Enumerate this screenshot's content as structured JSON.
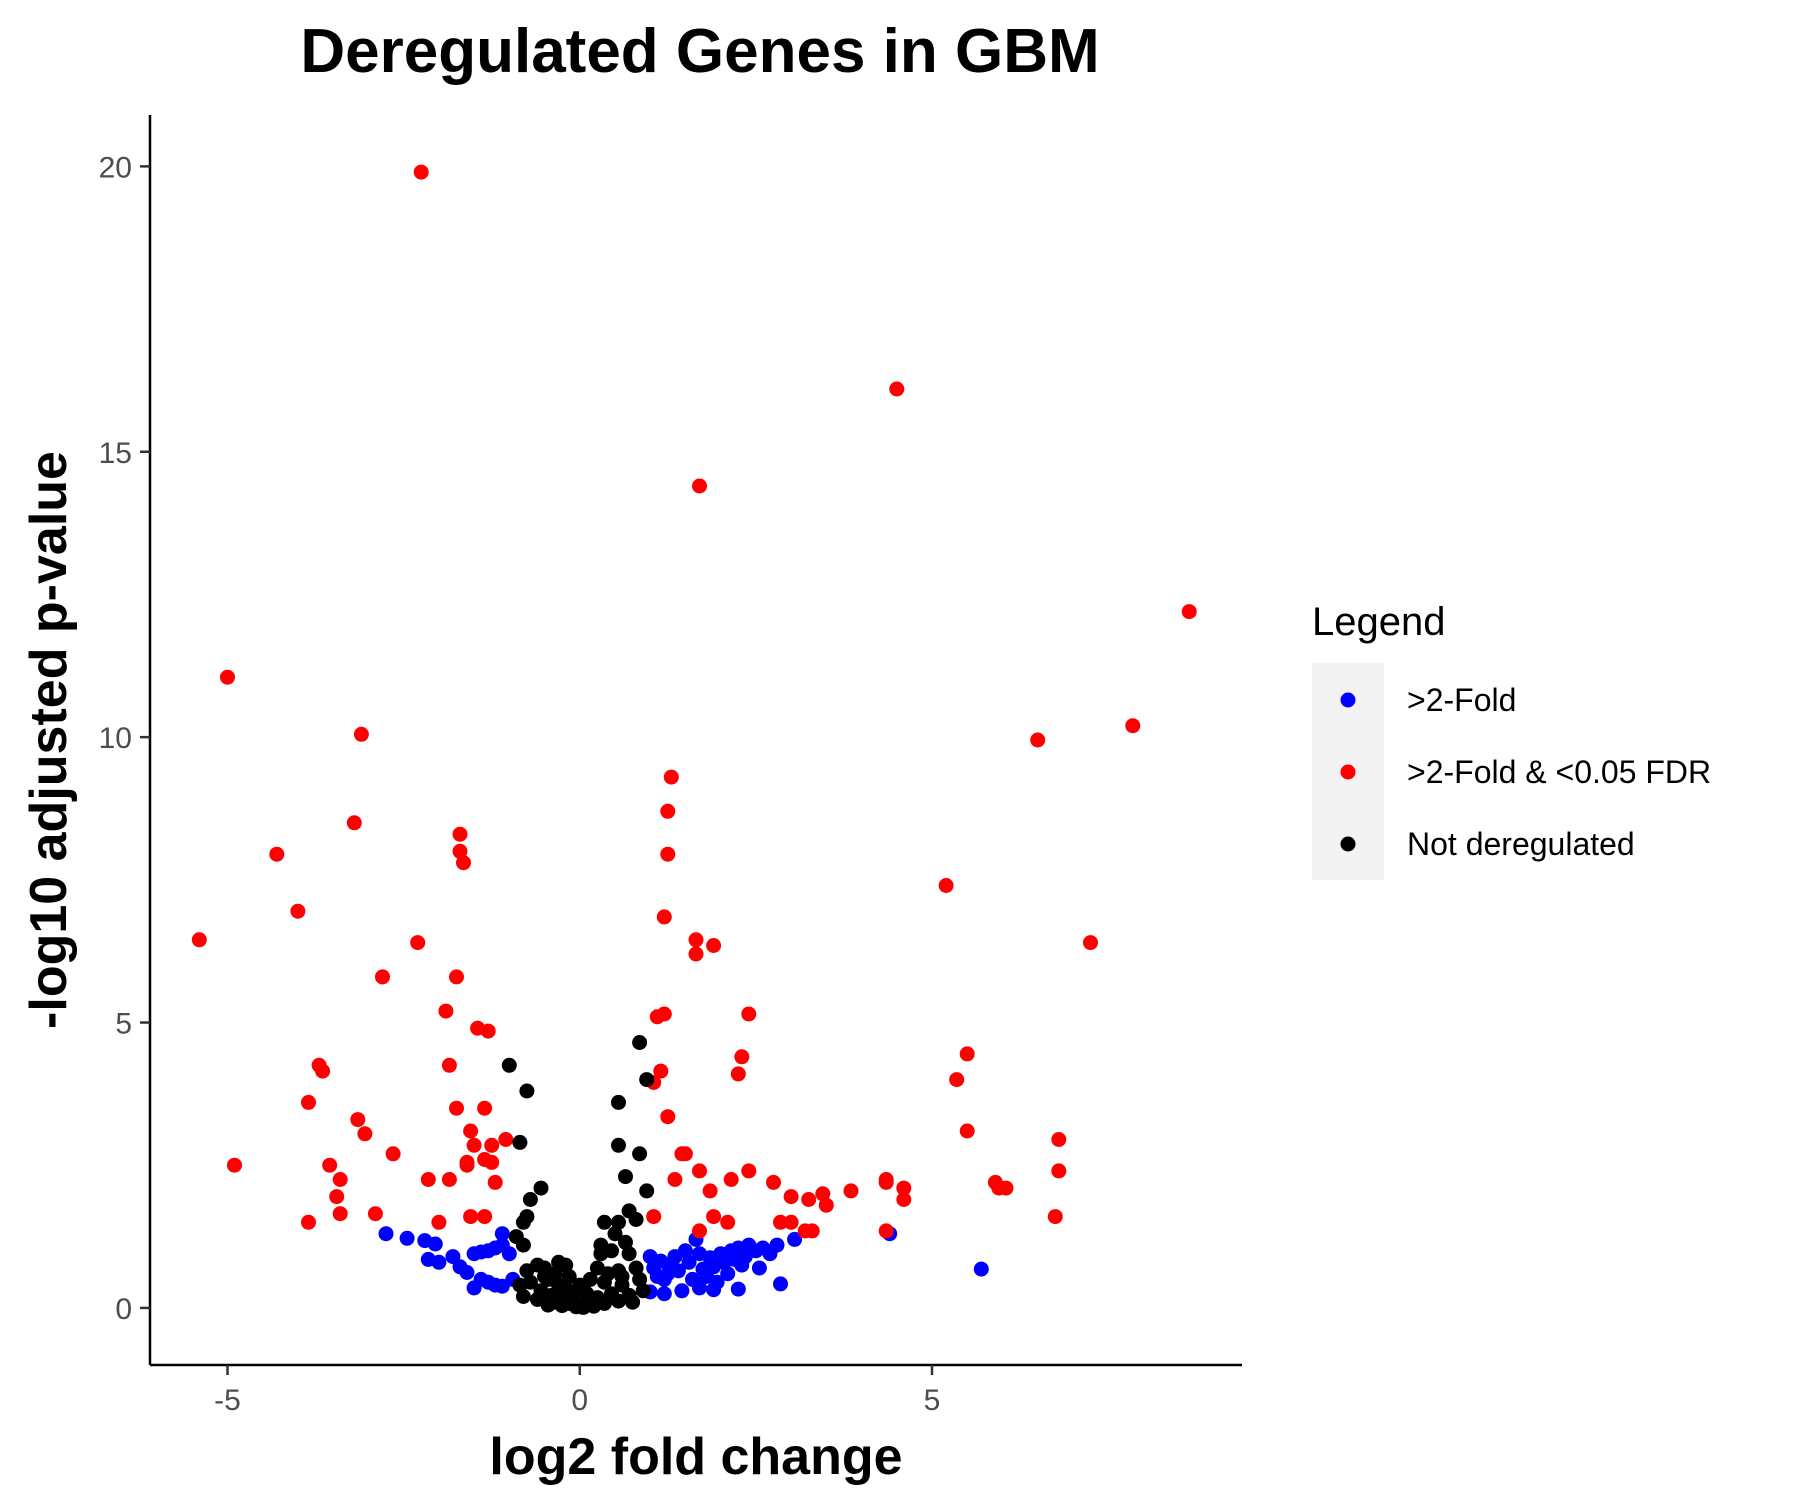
{
  "chart_data": {
    "type": "scatter",
    "title": "Deregulated Genes in GBM",
    "xlabel": "log2 fold change",
    "ylabel": "-log10 adjusted p-value",
    "xlim": [
      -6.1,
      9.4
    ],
    "ylim": [
      -1.0,
      20.9
    ],
    "xticks": [
      -5,
      0,
      5
    ],
    "yticks": [
      0,
      5,
      10,
      15,
      20
    ],
    "grid": false,
    "legend": {
      "title": "Legend",
      "placement": "right"
    },
    "series": [
      {
        "name": ">2-Fold",
        "color": "#0000ff",
        "points": [
          [
            -2.75,
            1.3
          ],
          [
            -2.45,
            1.22
          ],
          [
            -2.2,
            1.18
          ],
          [
            -2.05,
            1.12
          ],
          [
            -2.15,
            0.85
          ],
          [
            -2.0,
            0.8
          ],
          [
            -1.8,
            0.9
          ],
          [
            -1.7,
            0.72
          ],
          [
            -1.6,
            0.62
          ],
          [
            -1.5,
            0.95
          ],
          [
            -1.4,
            0.98
          ],
          [
            -1.3,
            1.0
          ],
          [
            -1.2,
            1.05
          ],
          [
            -1.1,
            1.1
          ],
          [
            -1.1,
            1.3
          ],
          [
            -1.0,
            0.95
          ],
          [
            -1.4,
            0.5
          ],
          [
            -1.3,
            0.45
          ],
          [
            -1.5,
            0.35
          ],
          [
            -1.2,
            0.4
          ],
          [
            -1.1,
            0.38
          ],
          [
            -0.95,
            0.5
          ],
          [
            1.0,
            0.9
          ],
          [
            1.05,
            0.7
          ],
          [
            1.1,
            0.55
          ],
          [
            1.15,
            0.82
          ],
          [
            1.2,
            0.5
          ],
          [
            1.25,
            0.6
          ],
          [
            1.3,
            0.75
          ],
          [
            1.35,
            0.9
          ],
          [
            1.4,
            0.65
          ],
          [
            1.5,
            1.0
          ],
          [
            1.55,
            0.8
          ],
          [
            1.6,
            0.5
          ],
          [
            1.65,
            1.2
          ],
          [
            1.7,
            0.95
          ],
          [
            1.75,
            0.68
          ],
          [
            1.8,
            0.55
          ],
          [
            1.85,
            0.88
          ],
          [
            1.9,
            0.72
          ],
          [
            1.95,
            0.45
          ],
          [
            2.0,
            0.95
          ],
          [
            2.05,
            0.8
          ],
          [
            2.1,
            0.6
          ],
          [
            2.15,
            1.0
          ],
          [
            2.2,
            0.85
          ],
          [
            2.25,
            1.05
          ],
          [
            2.3,
            0.75
          ],
          [
            2.35,
            0.9
          ],
          [
            2.4,
            1.1
          ],
          [
            2.5,
            1.0
          ],
          [
            2.55,
            0.7
          ],
          [
            2.6,
            1.05
          ],
          [
            2.7,
            0.95
          ],
          [
            2.8,
            1.1
          ],
          [
            3.05,
            1.2
          ],
          [
            2.85,
            0.42
          ],
          [
            2.25,
            0.33
          ],
          [
            1.0,
            0.28
          ],
          [
            1.2,
            0.25
          ],
          [
            1.45,
            0.3
          ],
          [
            1.7,
            0.35
          ],
          [
            1.9,
            0.32
          ],
          [
            4.4,
            1.3
          ],
          [
            5.7,
            0.68
          ]
        ]
      },
      {
        "name": ">2-Fold & <0.05 FDR",
        "color": "#ff0000",
        "points": [
          [
            -2.25,
            19.9
          ],
          [
            4.5,
            16.1
          ],
          [
            1.7,
            14.4
          ],
          [
            8.65,
            12.2
          ],
          [
            -5.0,
            11.05
          ],
          [
            7.85,
            10.2
          ],
          [
            -3.1,
            10.05
          ],
          [
            6.5,
            9.95
          ],
          [
            1.3,
            9.3
          ],
          [
            -3.2,
            8.5
          ],
          [
            1.25,
            8.7
          ],
          [
            -1.7,
            8.3
          ],
          [
            -4.3,
            7.95
          ],
          [
            -1.7,
            8.0
          ],
          [
            -1.65,
            7.8
          ],
          [
            1.25,
            7.95
          ],
          [
            5.2,
            7.4
          ],
          [
            -4.0,
            6.95
          ],
          [
            1.2,
            6.85
          ],
          [
            -5.4,
            6.45
          ],
          [
            -2.3,
            6.4
          ],
          [
            1.65,
            6.45
          ],
          [
            1.9,
            6.35
          ],
          [
            1.65,
            6.2
          ],
          [
            7.25,
            6.4
          ],
          [
            -2.8,
            5.8
          ],
          [
            -1.75,
            5.8
          ],
          [
            -1.9,
            5.2
          ],
          [
            1.1,
            5.1
          ],
          [
            1.2,
            5.15
          ],
          [
            2.4,
            5.15
          ],
          [
            -1.45,
            4.9
          ],
          [
            -1.3,
            4.85
          ],
          [
            5.5,
            4.45
          ],
          [
            2.3,
            4.4
          ],
          [
            -3.7,
            4.25
          ],
          [
            -3.65,
            4.15
          ],
          [
            -1.85,
            4.25
          ],
          [
            1.15,
            4.15
          ],
          [
            2.25,
            4.1
          ],
          [
            5.35,
            4.0
          ],
          [
            1.05,
            3.95
          ],
          [
            -3.85,
            3.6
          ],
          [
            -1.75,
            3.5
          ],
          [
            -1.35,
            3.5
          ],
          [
            1.25,
            3.35
          ],
          [
            -3.15,
            3.3
          ],
          [
            -1.55,
            3.1
          ],
          [
            5.5,
            3.1
          ],
          [
            -3.05,
            3.05
          ],
          [
            6.8,
            2.95
          ],
          [
            -1.5,
            2.85
          ],
          [
            -1.25,
            2.85
          ],
          [
            -1.05,
            2.95
          ],
          [
            -2.65,
            2.7
          ],
          [
            1.5,
            2.7
          ],
          [
            1.45,
            2.7
          ],
          [
            -1.6,
            2.55
          ],
          [
            -1.35,
            2.6
          ],
          [
            -1.25,
            2.55
          ],
          [
            -3.55,
            2.5
          ],
          [
            -4.9,
            2.5
          ],
          [
            -1.6,
            2.5
          ],
          [
            1.7,
            2.4
          ],
          [
            2.4,
            2.4
          ],
          [
            6.8,
            2.4
          ],
          [
            -3.4,
            2.25
          ],
          [
            -2.15,
            2.25
          ],
          [
            -1.85,
            2.25
          ],
          [
            -1.2,
            2.2
          ],
          [
            1.35,
            2.25
          ],
          [
            2.15,
            2.25
          ],
          [
            2.75,
            2.2
          ],
          [
            4.35,
            2.25
          ],
          [
            5.9,
            2.2
          ],
          [
            4.35,
            2.2
          ],
          [
            4.6,
            2.1
          ],
          [
            6.05,
            2.1
          ],
          [
            1.85,
            2.05
          ],
          [
            3.85,
            2.05
          ],
          [
            3.45,
            2.0
          ],
          [
            -3.45,
            1.95
          ],
          [
            3.0,
            1.95
          ],
          [
            5.95,
            2.1
          ],
          [
            3.5,
            1.8
          ],
          [
            3.25,
            1.9
          ],
          [
            4.6,
            1.9
          ],
          [
            -3.4,
            1.65
          ],
          [
            -2.9,
            1.65
          ],
          [
            -1.55,
            1.6
          ],
          [
            -1.35,
            1.6
          ],
          [
            1.05,
            1.6
          ],
          [
            1.9,
            1.6
          ],
          [
            2.1,
            1.5
          ],
          [
            6.75,
            1.6
          ],
          [
            -3.85,
            1.5
          ],
          [
            -2.0,
            1.5
          ],
          [
            3.0,
            1.5
          ],
          [
            2.85,
            1.5
          ],
          [
            3.2,
            1.35
          ],
          [
            3.3,
            1.35
          ],
          [
            1.7,
            1.35
          ],
          [
            4.35,
            1.35
          ]
        ]
      },
      {
        "name": "Not deregulated",
        "color": "#000000",
        "points": [
          [
            -1.0,
            4.25
          ],
          [
            -0.75,
            3.8
          ],
          [
            0.85,
            4.65
          ],
          [
            0.95,
            4.0
          ],
          [
            0.55,
            3.6
          ],
          [
            -0.85,
            2.9
          ],
          [
            0.55,
            2.85
          ],
          [
            0.85,
            2.7
          ],
          [
            0.65,
            2.3
          ],
          [
            -0.55,
            2.1
          ],
          [
            -0.7,
            1.9
          ],
          [
            0.95,
            2.05
          ],
          [
            -0.75,
            1.6
          ],
          [
            0.7,
            1.7
          ],
          [
            -0.8,
            1.5
          ],
          [
            0.35,
            1.5
          ],
          [
            0.55,
            1.5
          ],
          [
            0.8,
            1.55
          ],
          [
            0.5,
            1.3
          ],
          [
            -0.9,
            1.25
          ],
          [
            -0.8,
            1.1
          ],
          [
            0.65,
            1.15
          ],
          [
            0.3,
            1.1
          ],
          [
            0.45,
            1.0
          ],
          [
            0.3,
            0.95
          ],
          [
            0.7,
            0.95
          ],
          [
            -0.3,
            0.8
          ],
          [
            -0.6,
            0.75
          ],
          [
            -0.75,
            0.65
          ],
          [
            -0.5,
            0.7
          ],
          [
            -0.2,
            0.75
          ],
          [
            0.25,
            0.7
          ],
          [
            0.55,
            0.65
          ],
          [
            0.8,
            0.7
          ],
          [
            -0.7,
            0.45
          ],
          [
            -0.45,
            0.5
          ],
          [
            -0.3,
            0.4
          ],
          [
            -0.15,
            0.55
          ],
          [
            0.0,
            0.4
          ],
          [
            0.15,
            0.5
          ],
          [
            0.35,
            0.45
          ],
          [
            0.6,
            0.4
          ],
          [
            0.85,
            0.5
          ],
          [
            -0.85,
            0.4
          ],
          [
            -0.55,
            0.3
          ],
          [
            -0.4,
            0.22
          ],
          [
            -0.25,
            0.28
          ],
          [
            -0.1,
            0.2
          ],
          [
            0.1,
            0.25
          ],
          [
            0.25,
            0.18
          ],
          [
            0.45,
            0.25
          ],
          [
            0.7,
            0.22
          ],
          [
            0.9,
            0.3
          ],
          [
            -0.6,
            0.15
          ],
          [
            -0.35,
            0.1
          ],
          [
            -0.15,
            0.08
          ],
          [
            0.0,
            0.05
          ],
          [
            0.15,
            0.1
          ],
          [
            0.35,
            0.08
          ],
          [
            0.55,
            0.12
          ],
          [
            -0.45,
            0.05
          ],
          [
            -0.05,
            0.02
          ],
          [
            0.05,
            0.01
          ],
          [
            0.2,
            0.03
          ],
          [
            -0.25,
            0.04
          ],
          [
            0.75,
            0.1
          ],
          [
            -0.8,
            0.2
          ],
          [
            0.4,
            0.6
          ],
          [
            -0.35,
            0.6
          ],
          [
            0.05,
            0.35
          ],
          [
            -0.5,
            0.55
          ],
          [
            0.6,
            0.55
          ],
          [
            -0.2,
            0.35
          ]
        ]
      }
    ]
  }
}
